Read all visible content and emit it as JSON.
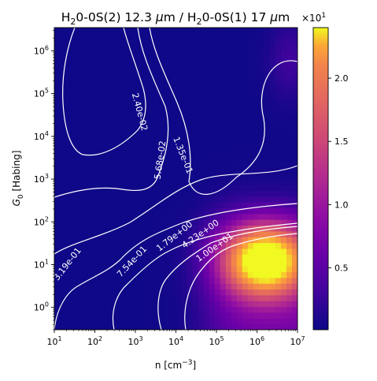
{
  "chart_data": {
    "type": "heatmap",
    "title": {
      "prefix": "H",
      "sub1": "2",
      "mid1": "0-0S(2) 12.3 ",
      "mu1": "μ",
      "unit1": "m / H",
      "sub2": "2",
      "mid2": "0-0S(1) 17 ",
      "mu2": "μ",
      "unit2": "m"
    },
    "xlabel": {
      "main": "n [cm",
      "sup": "−3",
      "close": "]"
    },
    "ylabel": {
      "g": "G",
      "sub": "0",
      "rest": " [Habing]"
    },
    "x_scale": "log",
    "y_scale": "log",
    "xlim": [
      10,
      10000000
    ],
    "ylim": [
      0.3,
      3500000
    ],
    "x_ticks": [
      {
        "value": 10,
        "base": "10",
        "exp": "1"
      },
      {
        "value": 100,
        "base": "10",
        "exp": "2"
      },
      {
        "value": 1000,
        "base": "10",
        "exp": "3"
      },
      {
        "value": 10000,
        "base": "10",
        "exp": "4"
      },
      {
        "value": 100000,
        "base": "10",
        "exp": "5"
      },
      {
        "value": 1000000,
        "base": "10",
        "exp": "6"
      },
      {
        "value": 10000000,
        "base": "10",
        "exp": "7"
      }
    ],
    "y_ticks": [
      {
        "value": 1,
        "base": "10",
        "exp": "0"
      },
      {
        "value": 10,
        "base": "10",
        "exp": "1"
      },
      {
        "value": 100,
        "base": "10",
        "exp": "2"
      },
      {
        "value": 1000,
        "base": "10",
        "exp": "3"
      },
      {
        "value": 10000,
        "base": "10",
        "exp": "4"
      },
      {
        "value": 100000,
        "base": "10",
        "exp": "5"
      },
      {
        "value": 1000000,
        "base": "10",
        "exp": "6"
      }
    ],
    "colormap": "plasma",
    "colorbar": {
      "range": [
        0.01,
        2.4
      ],
      "ticks": [
        {
          "value": 0.5,
          "label": "0.5"
        },
        {
          "value": 1.0,
          "label": "1.0"
        },
        {
          "value": 1.5,
          "label": "1.5"
        },
        {
          "value": 2.0,
          "label": "2.0"
        }
      ],
      "multiplier": {
        "base": "×10",
        "exp": "1"
      }
    },
    "peak": {
      "log_n": 6.2,
      "log_g0": 1.1,
      "value": 2.4
    },
    "contour_levels": [
      {
        "label": "3.19e-01",
        "value": 0.0319
      },
      {
        "label": "7.54e-01",
        "value": 0.0754
      },
      {
        "label": "1.79e+00",
        "value": 0.179
      },
      {
        "label": "4.23e+00",
        "value": 0.423
      },
      {
        "label": "1.00e+01",
        "value": 1.0
      },
      {
        "label": "2.40e-02",
        "value": 0.0024
      },
      {
        "label": "5.68e-02",
        "value": 0.00568
      },
      {
        "label": "1.35e-01",
        "value": 0.0135
      }
    ]
  }
}
